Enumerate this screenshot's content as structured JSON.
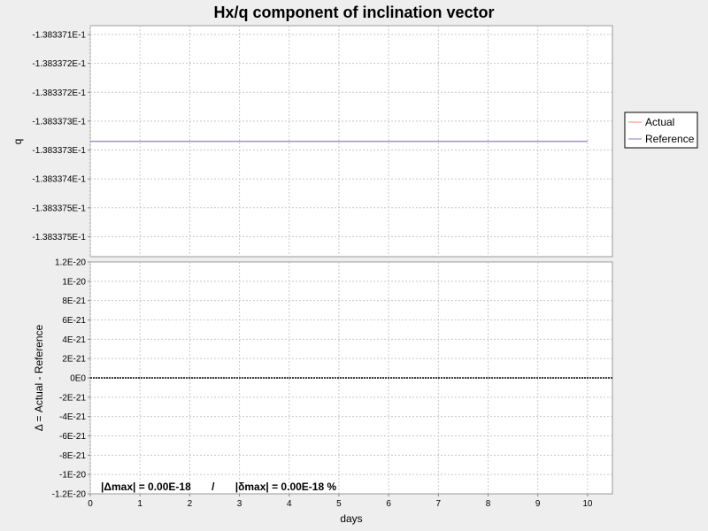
{
  "chart_data": {
    "type": "line",
    "title": "Hx/q component of inclination vector",
    "xlabel": "days",
    "x_ticks": [
      "0",
      "1",
      "2",
      "3",
      "4",
      "5",
      "6",
      "7",
      "8",
      "9",
      "10"
    ],
    "xlim": [
      0,
      10.5
    ],
    "grid": true,
    "legend_position": "right",
    "top_panel": {
      "ylabel": "q",
      "y_tick_labels": [
        "-1.383371E-1",
        "-1.383372E-1",
        "-1.383372E-1",
        "-1.383373E-1",
        "-1.383373E-1",
        "-1.383374E-1",
        "-1.383375E-1",
        "-1.383375E-1"
      ],
      "series": [
        {
          "name": "Actual",
          "color": "#ff7f7f",
          "x": [
            0,
            10
          ],
          "y": [
            -0.13833734,
            -0.13833734
          ]
        },
        {
          "name": "Reference",
          "color": "#7f7fbf",
          "x": [
            0,
            10
          ],
          "y": [
            -0.13833734,
            -0.13833734
          ]
        }
      ]
    },
    "bottom_panel": {
      "ylabel": "Δ = Actual - Reference",
      "ylim": [
        -1.2e-20,
        1.2e-20
      ],
      "y_ticks": [
        "1.2E-20",
        "1E-20",
        "8E-21",
        "6E-21",
        "4E-21",
        "2E-21",
        "0E0",
        "-2E-21",
        "-4E-21",
        "-6E-21",
        "-8E-21",
        "-1E-20",
        "-1.2E-20"
      ],
      "series": [
        {
          "name": "Δ",
          "color": "#000000",
          "x": [
            0,
            10.5
          ],
          "y": [
            0,
            0
          ]
        }
      ]
    },
    "annotation": "|Δmax| = 0.00E-18       /       |δmax| = 0.00E-18 %"
  }
}
